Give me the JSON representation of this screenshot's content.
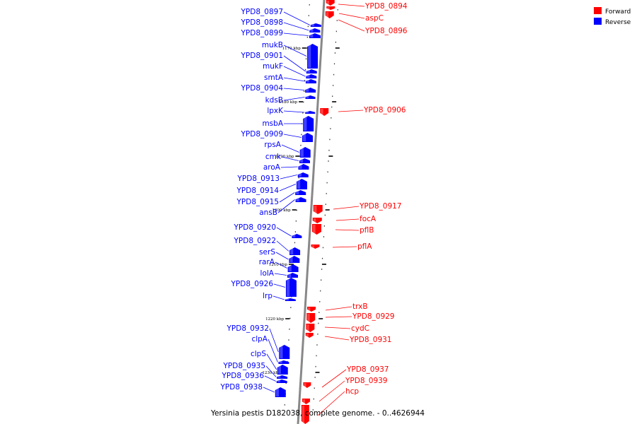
{
  "caption": "Yersinia pestis D182038, complete genome. - 0..4626944",
  "legend": [
    {
      "label": "Forward",
      "color": "#ff0000"
    },
    {
      "label": "Reverse",
      "color": "#0000ff"
    }
  ],
  "colors": {
    "forward": "#ff0000",
    "reverse": "#0000ff",
    "axis": "#888888",
    "tick": "#000000"
  },
  "ticks": [
    "1170 kbp",
    "1180 kbp",
    "1190 kbp",
    "1200 kbp",
    "1210 kbp",
    "1220 kbp",
    "1230 kbp"
  ],
  "forward_genes": [
    "YPD8_0894",
    "aspC",
    "YPD8_0896",
    "YPD8_0906",
    "YPD8_0917",
    "focA",
    "pflB",
    "pflA",
    "trxB",
    "YPD8_0929",
    "cydC",
    "YPD8_0931",
    "YPD8_0937",
    "YPD8_0939",
    "hcp"
  ],
  "reverse_genes": [
    "YPD8_0897",
    "YPD8_0898",
    "YPD8_0899",
    "mukB",
    "YPD8_0901",
    "mukF",
    "smtA",
    "YPD8_0904",
    "kdsB",
    "lpxK",
    "msbA",
    "YPD8_0909",
    "rpsA",
    "cmk",
    "aroA",
    "YPD8_0913",
    "YPD8_0914",
    "YPD8_0915",
    "ansB",
    "YPD8_0920",
    "YPD8_0922",
    "serS",
    "rarA",
    "lolA",
    "YPD8_0926",
    "lrp",
    "YPD8_0932",
    "clpA",
    "clpS",
    "YPD8_0935",
    "YPD8_0936",
    "YPD8_0938"
  ]
}
